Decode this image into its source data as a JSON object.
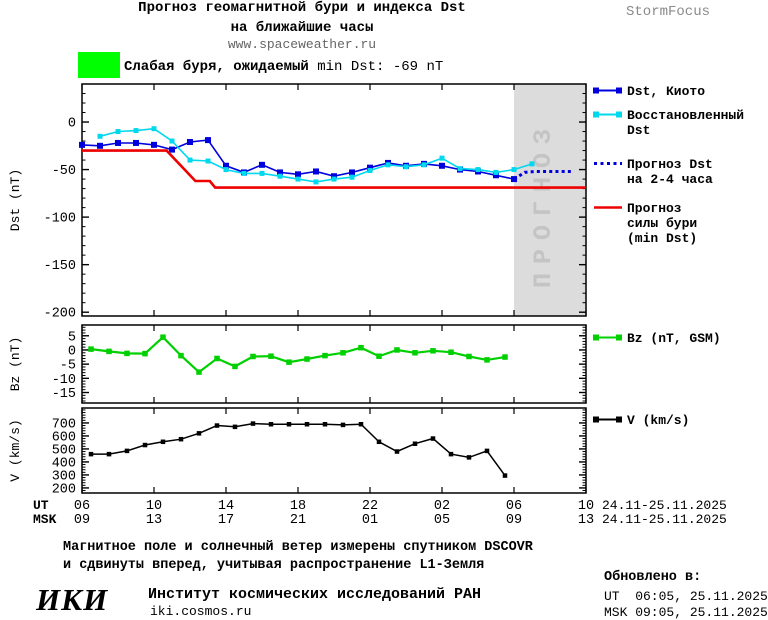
{
  "header": {
    "title_line1": "Прогноз геомагнитной бури и индекса Dst",
    "title_line2": "на ближайшие часы",
    "website": "www.spaceweather.ru",
    "brand": "StormFocus"
  },
  "alert": {
    "severity_text": "Слабая буря, ожидаемый ",
    "value_text": "min Dst: -69 nT",
    "swatch_color": "#00ff00"
  },
  "legend_dst": {
    "items": [
      {
        "lines": [
          "Dst, Киото"
        ],
        "color": "#0000dd",
        "style": "solid-squares"
      },
      {
        "lines": [
          "Восстановленный",
          "Dst"
        ],
        "color": "#00d8ee",
        "style": "solid-squares"
      },
      {
        "lines": [
          "Прогноз Dst",
          "на 2-4 часа"
        ],
        "color": "#0000dd",
        "style": "dotted"
      },
      {
        "lines": [
          "Прогноз",
          "силы бури",
          "(min Dst)"
        ],
        "color": "#ee0000",
        "style": "solid"
      }
    ]
  },
  "legend_bz": {
    "lines": [
      "Bz (nT, GSM)"
    ],
    "color": "#00d000",
    "style": "solid-squares"
  },
  "legend_v": {
    "lines": [
      "V (km/s)"
    ],
    "color": "#000000",
    "style": "solid-squares"
  },
  "xaxis": {
    "ut_label": "UT",
    "msk_label": "MSK",
    "ut_values": [
      "06",
      "10",
      "14",
      "18",
      "22",
      "02",
      "06",
      "10"
    ],
    "msk_values": [
      "09",
      "13",
      "17",
      "21",
      "01",
      "05",
      "09",
      "13"
    ],
    "ut_date": "24.11-25.11.2025",
    "msk_date": "24.11-25.11.2025"
  },
  "footer": {
    "note_line1": "Магнитное поле и солнечный ветер измерены спутником DSCOVR",
    "note_line2": "и сдвинуты вперед, учитывая распространение L1-Земля",
    "logo": "ИКИ",
    "institute": "Институт космических исследований РАН",
    "website": "iki.cosmos.ru",
    "updated_label": "Обновлено в:",
    "updated_ut": "UT  06:05, 25.11.2025",
    "updated_msk": "MSK 09:05, 25.11.2025"
  },
  "chart_data": [
    {
      "type": "line",
      "name": "dst",
      "ylabel": "Dst (nT)",
      "ylim": [
        -204,
        40
      ],
      "yticks": [
        0,
        -50,
        -100,
        -150,
        -200
      ],
      "ytick_minor_step": 10,
      "xlim_hours": [
        6,
        34
      ],
      "xticks_hours": [
        6,
        10,
        14,
        18,
        22,
        26,
        30,
        34
      ],
      "forecast_region": {
        "start_hour": 30,
        "end_hour": 34,
        "fill": "#dcdcdc",
        "label": "ПРОГНОЗ",
        "label_color": "#c4c4c4"
      },
      "series": [
        {
          "name": "Dst, Киото",
          "color": "#0000dd",
          "width": 1.6,
          "marker": "square",
          "marker_size": 6,
          "hours": [
            6,
            7,
            8,
            9,
            10,
            11,
            12,
            13,
            14,
            15,
            16,
            17,
            18,
            19,
            20,
            21,
            22,
            23,
            24,
            25,
            26,
            27,
            28,
            29,
            30
          ],
          "values": [
            -24,
            -25,
            -22,
            -22,
            -24,
            -29,
            -21,
            -19,
            -46,
            -53,
            -45,
            -53,
            -55,
            -52,
            -57,
            -53,
            -48,
            -43,
            -46,
            -44,
            -46,
            -50,
            -52,
            -56,
            -60
          ]
        },
        {
          "name": "Восстановленный Dst",
          "color": "#00d8ee",
          "width": 1.6,
          "marker": "square",
          "marker_size": 5,
          "hours": [
            7,
            8,
            9,
            10,
            11,
            12,
            13,
            14,
            15,
            16,
            17,
            18,
            19,
            20,
            21,
            22,
            23,
            24,
            25,
            26,
            27,
            28,
            29,
            30,
            31
          ],
          "values": [
            -15,
            -10,
            -9,
            -7,
            -20,
            -40,
            -41,
            -50,
            -54,
            -54,
            -57,
            -60,
            -63,
            -60,
            -58,
            -51,
            -45,
            -47,
            -45,
            -38,
            -49,
            -50,
            -53,
            -50,
            -44
          ]
        },
        {
          "name": "Прогноз Dst на 2-4 часа",
          "color": "#0000dd",
          "width": 3,
          "dash": "3 3.2",
          "hours": [
            30,
            30.6,
            31.2,
            33.3
          ],
          "values": [
            -60,
            -53,
            -52,
            -52
          ]
        },
        {
          "name": "Прогноз силы бури (min Dst)",
          "color": "#ee0000",
          "width": 2.6,
          "hours": [
            6,
            10.7,
            12.3,
            13.1,
            13.4,
            34
          ],
          "values": [
            -30,
            -30,
            -62,
            -62,
            -69,
            -69
          ]
        }
      ]
    },
    {
      "type": "line",
      "name": "bz",
      "ylabel": "Bz (nT)",
      "ylim": [
        -18.7,
        8.8
      ],
      "yticks": [
        5,
        0,
        -5,
        -10,
        -15
      ],
      "ytick_minor_step": 1,
      "xlim_hours": [
        6,
        34
      ],
      "xticks_hours": [
        6,
        10,
        14,
        18,
        22,
        26,
        30,
        34
      ],
      "series": [
        {
          "name": "Bz (nT, GSM)",
          "color": "#00d000",
          "width": 2.2,
          "marker": "square",
          "marker_size": 5.5,
          "hours": [
            6.5,
            7.5,
            8.5,
            9.5,
            10.5,
            11.5,
            12.5,
            13.5,
            14.5,
            15.5,
            16.5,
            17.5,
            18.5,
            19.5,
            20.5,
            21.5,
            22.5,
            23.5,
            24.5,
            25.5,
            26.5,
            27.5,
            28.5,
            29.5
          ],
          "values": [
            0.3,
            -0.5,
            -1.2,
            -1.3,
            4.5,
            -2,
            -7.8,
            -3,
            -5.8,
            -2.3,
            -2.2,
            -4.3,
            -3.2,
            -2,
            -1,
            0.8,
            -2.2,
            0,
            -1,
            -0.3,
            -0.8,
            -2.3,
            -3.5,
            -2.5
          ]
        }
      ]
    },
    {
      "type": "line",
      "name": "v",
      "ylabel": "V (km/s)",
      "ylim": [
        161,
        815
      ],
      "yticks": [
        700,
        600,
        500,
        400,
        300,
        200
      ],
      "ytick_minor_step": 20,
      "xlim_hours": [
        6,
        34
      ],
      "xticks_hours": [
        6,
        10,
        14,
        18,
        22,
        26,
        30,
        34
      ],
      "series": [
        {
          "name": "V (km/s)",
          "color": "#000000",
          "width": 1.5,
          "marker": "square",
          "marker_size": 4.5,
          "hours": [
            6.5,
            7.5,
            8.5,
            9.5,
            10.5,
            11.5,
            12.5,
            13.5,
            14.5,
            15.5,
            16.5,
            17.5,
            18.5,
            19.5,
            20.5,
            21.5,
            22.5,
            23.5,
            24.5,
            25.5,
            26.5,
            27.5,
            28.5,
            29.5
          ],
          "values": [
            460,
            460,
            485,
            530,
            555,
            575,
            620,
            680,
            670,
            695,
            690,
            690,
            690,
            690,
            685,
            690,
            555,
            480,
            540,
            580,
            460,
            435,
            485,
            295
          ]
        }
      ]
    }
  ]
}
